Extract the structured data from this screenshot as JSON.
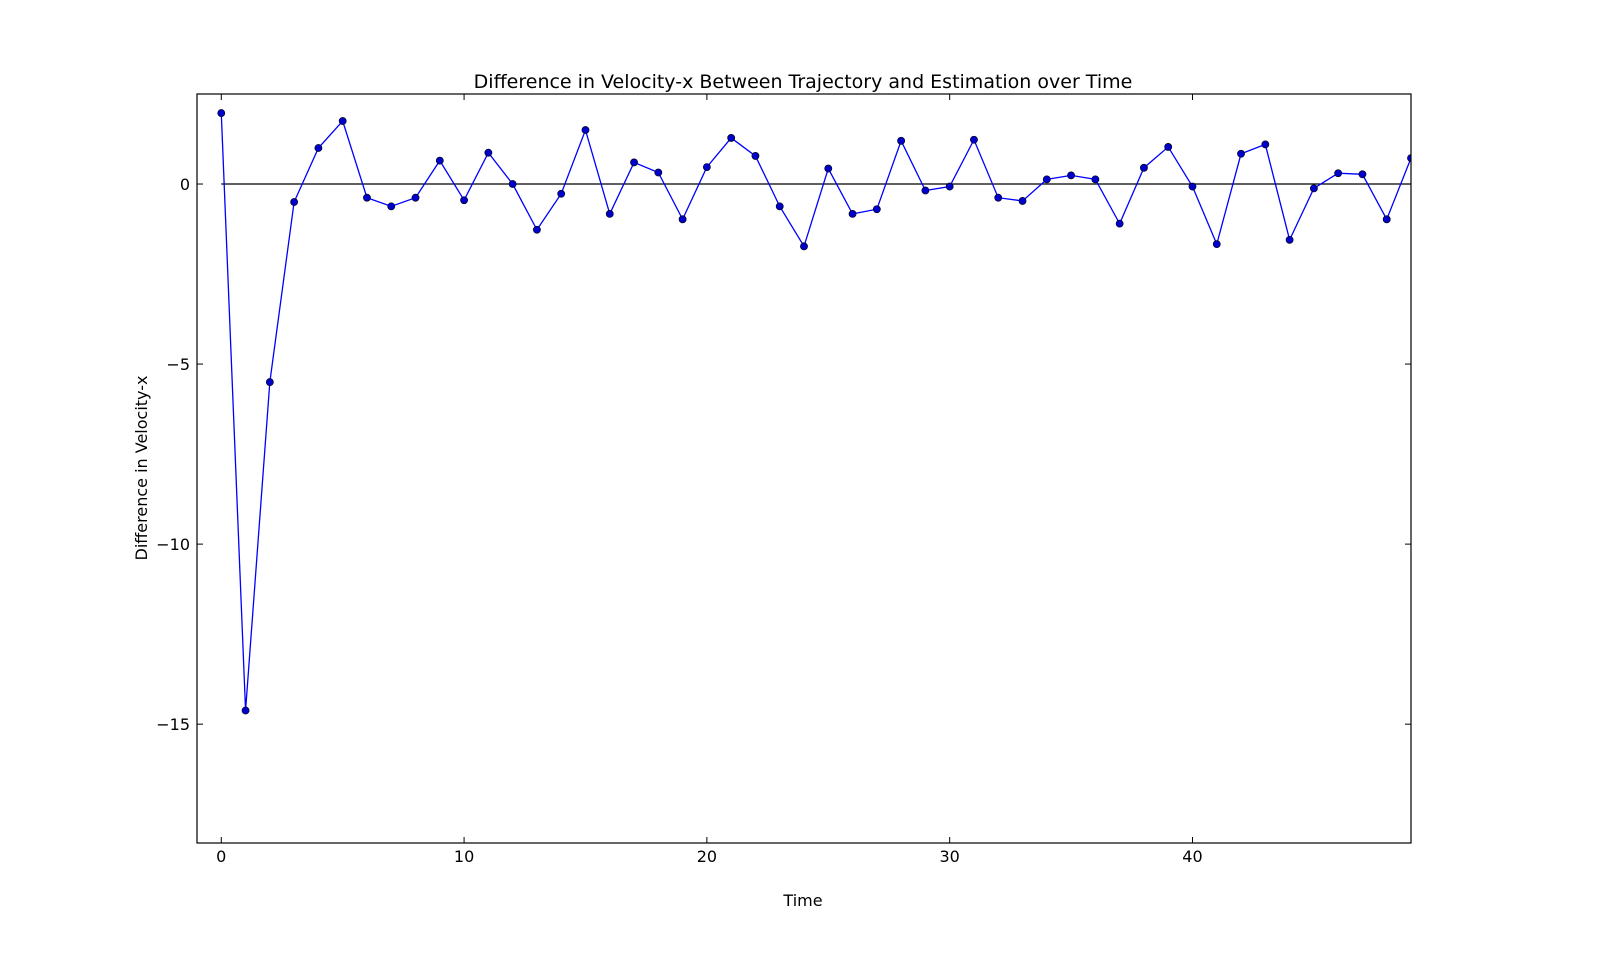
{
  "chart_data": {
    "type": "line",
    "title": "Difference in Velocity-x Between Trajectory and Estimation over Time",
    "xlabel": "Time",
    "ylabel": "Difference in Velocity-x",
    "xlim": [
      -1,
      49
    ],
    "ylim": [
      -18.3,
      2.5
    ],
    "xticks": [
      0,
      10,
      20,
      30,
      40
    ],
    "xtick_labels": [
      "0",
      "10",
      "20",
      "30",
      "40"
    ],
    "yticks": [
      0,
      -5,
      -10,
      -15
    ],
    "ytick_labels": [
      "0",
      "−5",
      "−10",
      "−15"
    ],
    "reference_line": {
      "y": 0,
      "color": "#000000"
    },
    "series": [
      {
        "color": "#0000ff",
        "marker_color": "#0000cc",
        "x": [
          0,
          1,
          2,
          3,
          4,
          5,
          6,
          7,
          8,
          9,
          10,
          11,
          12,
          13,
          14,
          15,
          16,
          17,
          18,
          19,
          20,
          21,
          22,
          23,
          24,
          25,
          26,
          27,
          28,
          29,
          30,
          31,
          32,
          33,
          34,
          35,
          36,
          37,
          38,
          39,
          40,
          41,
          42,
          43,
          44,
          45,
          46,
          47,
          48,
          49
        ],
        "y": [
          1.97,
          -14.62,
          -5.5,
          -0.5,
          1.0,
          1.75,
          -0.38,
          -0.62,
          -0.38,
          0.65,
          -0.45,
          0.87,
          0.0,
          -1.27,
          -0.27,
          1.5,
          -0.83,
          0.6,
          0.32,
          -0.98,
          0.47,
          1.28,
          0.78,
          -0.62,
          -1.73,
          0.43,
          -0.83,
          -0.7,
          1.2,
          -0.18,
          -0.07,
          1.23,
          -0.38,
          -0.47,
          0.13,
          0.24,
          0.13,
          -1.1,
          0.45,
          1.03,
          -0.07,
          -1.67,
          0.84,
          1.1,
          -1.55,
          -0.12,
          0.3,
          0.27,
          -0.98,
          0.72
        ]
      }
    ],
    "grid": false,
    "legend": "none"
  }
}
